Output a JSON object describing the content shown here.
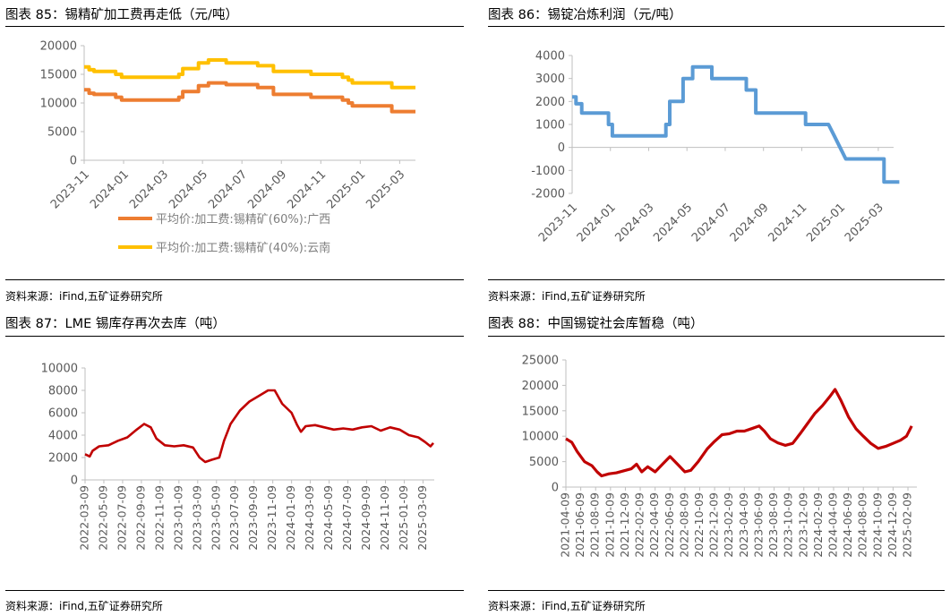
{
  "source_label": "资料来源：iFind,五矿证券研究所",
  "chart_data": [
    {
      "type": "line",
      "title": "图表 85：锡精矿加工费再走低（元/吨）",
      "source": "资料来源：iFind,五矿证券研究所",
      "ylim": [
        0,
        20000
      ],
      "yticks": [
        "0",
        "5000",
        "10000",
        "15000",
        "20000"
      ],
      "xlim": [
        0,
        16.8
      ],
      "xticks": [
        "2023-11",
        "2024-01",
        "2024-03",
        "2024-05",
        "2024-07",
        "2024-09",
        "2024-11",
        "2025-01",
        "2025-03"
      ],
      "series": [
        {
          "name": "平均价:加工费:锡精矿(60%):广西",
          "color": "#ed7d31",
          "points": [
            [
              0,
              12300
            ],
            [
              0.25,
              12300
            ],
            [
              0.25,
              11700
            ],
            [
              0.5,
              11700
            ],
            [
              0.5,
              11500
            ],
            [
              1.6,
              11500
            ],
            [
              1.6,
              11000
            ],
            [
              1.9,
              11000
            ],
            [
              1.9,
              10500
            ],
            [
              4.8,
              10500
            ],
            [
              4.8,
              11000
            ],
            [
              5.0,
              11000
            ],
            [
              5.0,
              12000
            ],
            [
              5.8,
              12000
            ],
            [
              5.8,
              13000
            ],
            [
              6.3,
              13000
            ],
            [
              6.3,
              13500
            ],
            [
              7.2,
              13500
            ],
            [
              7.2,
              13200
            ],
            [
              8.8,
              13200
            ],
            [
              8.8,
              12700
            ],
            [
              9.6,
              12700
            ],
            [
              9.6,
              11500
            ],
            [
              11.5,
              11500
            ],
            [
              11.5,
              11000
            ],
            [
              13.1,
              11000
            ],
            [
              13.1,
              10500
            ],
            [
              13.4,
              10500
            ],
            [
              13.4,
              10000
            ],
            [
              13.6,
              10000
            ],
            [
              13.6,
              9500
            ],
            [
              15.6,
              9500
            ],
            [
              15.6,
              8500
            ],
            [
              16.8,
              8500
            ]
          ]
        },
        {
          "name": "平均价:加工费:锡精矿(40%):云南",
          "color": "#ffc000",
          "points": [
            [
              0,
              16300
            ],
            [
              0.25,
              16300
            ],
            [
              0.25,
              15800
            ],
            [
              0.5,
              15800
            ],
            [
              0.5,
              15500
            ],
            [
              1.6,
              15500
            ],
            [
              1.6,
              15000
            ],
            [
              1.9,
              15000
            ],
            [
              1.9,
              14500
            ],
            [
              4.8,
              14500
            ],
            [
              4.8,
              15000
            ],
            [
              5.0,
              15000
            ],
            [
              5.0,
              16000
            ],
            [
              5.8,
              16000
            ],
            [
              5.8,
              17000
            ],
            [
              6.3,
              17000
            ],
            [
              6.3,
              17500
            ],
            [
              7.2,
              17500
            ],
            [
              7.2,
              17000
            ],
            [
              8.8,
              17000
            ],
            [
              8.8,
              16500
            ],
            [
              9.6,
              16500
            ],
            [
              9.6,
              15500
            ],
            [
              11.5,
              15500
            ],
            [
              11.5,
              15000
            ],
            [
              13.1,
              15000
            ],
            [
              13.1,
              14500
            ],
            [
              13.4,
              14500
            ],
            [
              13.4,
              14000
            ],
            [
              13.6,
              14000
            ],
            [
              13.6,
              13500
            ],
            [
              15.6,
              13500
            ],
            [
              15.6,
              12700
            ],
            [
              16.8,
              12700
            ]
          ]
        }
      ]
    },
    {
      "type": "line",
      "title": "图表 86：锡锭冶炼利润（元/吨）",
      "source": "资料来源：iFind,五矿证券研究所",
      "ylim": [
        -2000,
        4000
      ],
      "yticks": [
        "-2000",
        "-1000",
        "0",
        "1000",
        "2000",
        "3000",
        "4000"
      ],
      "xlim": [
        0,
        16.8
      ],
      "xticks": [
        "2023-11",
        "2024-01",
        "2024-03",
        "2024-05",
        "2024-07",
        "2024-09",
        "2024-11",
        "2025-01",
        "2025-03"
      ],
      "series": [
        {
          "name": "锡锭冶炼利润",
          "color": "#5b9bd5",
          "points": [
            [
              0,
              2200
            ],
            [
              0.2,
              2200
            ],
            [
              0.2,
              1900
            ],
            [
              0.5,
              1900
            ],
            [
              0.5,
              1500
            ],
            [
              1.9,
              1500
            ],
            [
              1.9,
              1000
            ],
            [
              2.1,
              1000
            ],
            [
              2.1,
              500
            ],
            [
              4.9,
              500
            ],
            [
              4.9,
              1000
            ],
            [
              5.1,
              1000
            ],
            [
              5.1,
              2000
            ],
            [
              5.8,
              2000
            ],
            [
              5.8,
              3000
            ],
            [
              6.3,
              3000
            ],
            [
              6.3,
              3500
            ],
            [
              7.3,
              3500
            ],
            [
              7.3,
              3000
            ],
            [
              9.1,
              3000
            ],
            [
              9.1,
              2500
            ],
            [
              9.6,
              2500
            ],
            [
              9.6,
              1500
            ],
            [
              12.2,
              1500
            ],
            [
              12.2,
              1000
            ],
            [
              13.4,
              1000
            ],
            [
              13.7,
              500
            ],
            [
              14.0,
              0
            ],
            [
              14.3,
              -500
            ],
            [
              16.3,
              -500
            ],
            [
              16.3,
              -1500
            ],
            [
              17.1,
              -1500
            ]
          ]
        }
      ]
    },
    {
      "type": "line",
      "title": "图表 87：LME 锡库存再次去库（吨）",
      "source": "资料来源：iFind,五矿证券研究所",
      "ylim": [
        0,
        10000
      ],
      "yticks": [
        "0",
        "2000",
        "4000",
        "6000",
        "8000",
        "10000"
      ],
      "xlim": [
        0,
        37.2
      ],
      "xticks": [
        "2022-03-09",
        "2022-05-09",
        "2022-07-09",
        "2022-09-09",
        "2022-11-09",
        "2023-01-09",
        "2023-03-09",
        "2023-05-09",
        "2023-07-09",
        "2023-09-09",
        "2023-11-09",
        "2024-01-09",
        "2024-03-09",
        "2024-05-09",
        "2024-07-09",
        "2024-09-09",
        "2024-11-09",
        "2025-01-09",
        "2025-03-09"
      ],
      "series": [
        {
          "name": "LME锡库存",
          "color": "#c00000",
          "points": [
            [
              0,
              2300
            ],
            [
              0.5,
              2100
            ],
            [
              0.8,
              2600
            ],
            [
              1.5,
              3000
            ],
            [
              2.5,
              3100
            ],
            [
              3.5,
              3500
            ],
            [
              4.5,
              3800
            ],
            [
              5.5,
              4500
            ],
            [
              6.3,
              5000
            ],
            [
              7,
              4700
            ],
            [
              7.6,
              3700
            ],
            [
              8.5,
              3100
            ],
            [
              9.5,
              3000
            ],
            [
              10.5,
              3100
            ],
            [
              11.5,
              2900
            ],
            [
              12.2,
              2000
            ],
            [
              12.8,
              1600
            ],
            [
              13.5,
              1800
            ],
            [
              14.3,
              2000
            ],
            [
              14.8,
              3500
            ],
            [
              15.5,
              5000
            ],
            [
              16.5,
              6200
            ],
            [
              17.5,
              7000
            ],
            [
              18.5,
              7500
            ],
            [
              19.5,
              8000
            ],
            [
              20.2,
              8000
            ],
            [
              21,
              6800
            ],
            [
              22,
              6000
            ],
            [
              22.6,
              4900
            ],
            [
              23,
              4300
            ],
            [
              23.5,
              4800
            ],
            [
              24.5,
              4900
            ],
            [
              25.5,
              4700
            ],
            [
              26.5,
              4500
            ],
            [
              27.5,
              4600
            ],
            [
              28.5,
              4500
            ],
            [
              29.5,
              4700
            ],
            [
              30.5,
              4800
            ],
            [
              31.5,
              4400
            ],
            [
              32.5,
              4700
            ],
            [
              33.5,
              4500
            ],
            [
              34.5,
              4000
            ],
            [
              35.5,
              3800
            ],
            [
              36.2,
              3400
            ],
            [
              36.8,
              3000
            ],
            [
              37.1,
              3300
            ]
          ]
        }
      ]
    },
    {
      "type": "line",
      "title": "图表 88：中国锡锭社会库暂稳（吨）",
      "source": "资料来源：iFind,五矿证券研究所",
      "ylim": [
        0,
        25000
      ],
      "yticks": [
        "0",
        "5000",
        "10000",
        "15000",
        "20000",
        "25000"
      ],
      "xlim": [
        0,
        47.2
      ],
      "xticks": [
        "2021-04-09",
        "2021-06-09",
        "2021-08-09",
        "2021-10-09",
        "2021-12-09",
        "2022-02-09",
        "2022-04-09",
        "2022-06-09",
        "2022-08-09",
        "2022-10-09",
        "2022-12-09",
        "2023-02-09",
        "2023-04-09",
        "2023-06-09",
        "2023-08-09",
        "2023-10-09",
        "2023-12-09",
        "2024-02-09",
        "2024-04-09",
        "2024-06-09",
        "2024-08-09",
        "2024-10-09",
        "2024-12-09",
        "2025-02-09"
      ],
      "series": [
        {
          "name": "中国锡锭社会库存",
          "color": "#c00000",
          "points": [
            [
              0,
              9500
            ],
            [
              0.8,
              8800
            ],
            [
              1.5,
              7000
            ],
            [
              2.5,
              5000
            ],
            [
              3.5,
              4200
            ],
            [
              4.2,
              3000
            ],
            [
              4.8,
              2200
            ],
            [
              5.8,
              2600
            ],
            [
              6.8,
              2800
            ],
            [
              7.8,
              3200
            ],
            [
              8.8,
              3600
            ],
            [
              9.5,
              4500
            ],
            [
              10.2,
              3000
            ],
            [
              11,
              4000
            ],
            [
              12,
              3000
            ],
            [
              13,
              4500
            ],
            [
              14,
              6000
            ],
            [
              15,
              4500
            ],
            [
              16,
              3000
            ],
            [
              16.8,
              3300
            ],
            [
              17.8,
              5000
            ],
            [
              19,
              7500
            ],
            [
              20,
              9000
            ],
            [
              21,
              10300
            ],
            [
              22,
              10500
            ],
            [
              23,
              11000
            ],
            [
              24,
              11000
            ],
            [
              25,
              11500
            ],
            [
              26,
              12000
            ],
            [
              26.7,
              11000
            ],
            [
              27.5,
              9500
            ],
            [
              28.5,
              8700
            ],
            [
              29.5,
              8200
            ],
            [
              30.5,
              8600
            ],
            [
              31.5,
              10500
            ],
            [
              32.5,
              12500
            ],
            [
              33.5,
              14500
            ],
            [
              34.5,
              16000
            ],
            [
              35.5,
              17800
            ],
            [
              36.2,
              19200
            ],
            [
              37,
              17000
            ],
            [
              38,
              13800
            ],
            [
              39,
              11500
            ],
            [
              40,
              10000
            ],
            [
              41,
              8600
            ],
            [
              42,
              7600
            ],
            [
              43,
              8000
            ],
            [
              44,
              8600
            ],
            [
              45,
              9200
            ],
            [
              45.8,
              10000
            ],
            [
              46.5,
              12000
            ]
          ]
        }
      ]
    }
  ]
}
